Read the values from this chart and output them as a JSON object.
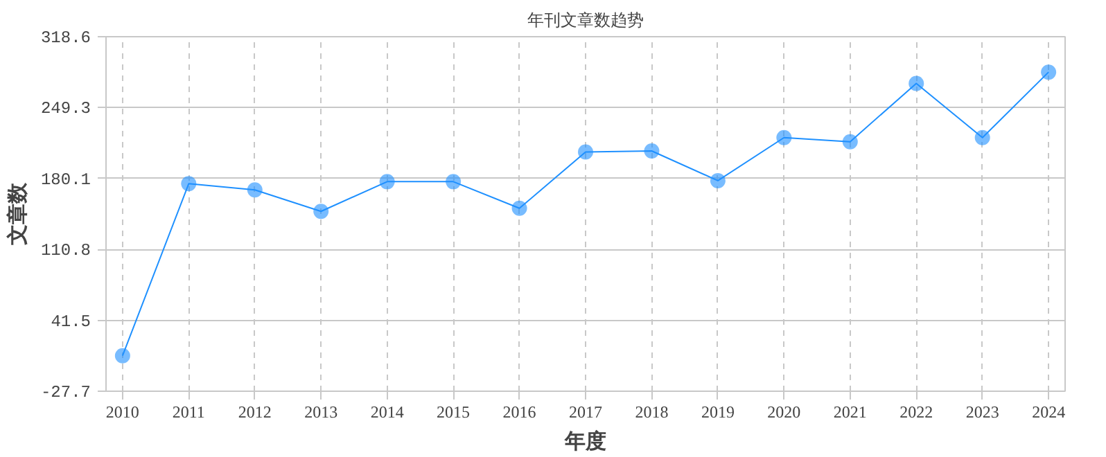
{
  "chart_data": {
    "type": "line",
    "title": "年刊文章数趋势",
    "xlabel": "年度",
    "ylabel": "文章数",
    "categories": [
      "2010",
      "2011",
      "2012",
      "2013",
      "2014",
      "2015",
      "2016",
      "2017",
      "2018",
      "2019",
      "2020",
      "2021",
      "2022",
      "2023",
      "2024"
    ],
    "series": [
      {
        "color": "#1e90ff",
        "values": [
          7,
          175,
          169,
          148,
          177,
          177,
          151,
          206,
          207,
          178,
          220,
          216,
          273,
          220,
          284
        ]
      }
    ],
    "ylim": [
      -27.7,
      318.6
    ],
    "yticks": [
      -27.7,
      41.5,
      110.8,
      180.1,
      249.3,
      318.6
    ],
    "grid": true,
    "marker": "circle",
    "line_style": "solid"
  }
}
